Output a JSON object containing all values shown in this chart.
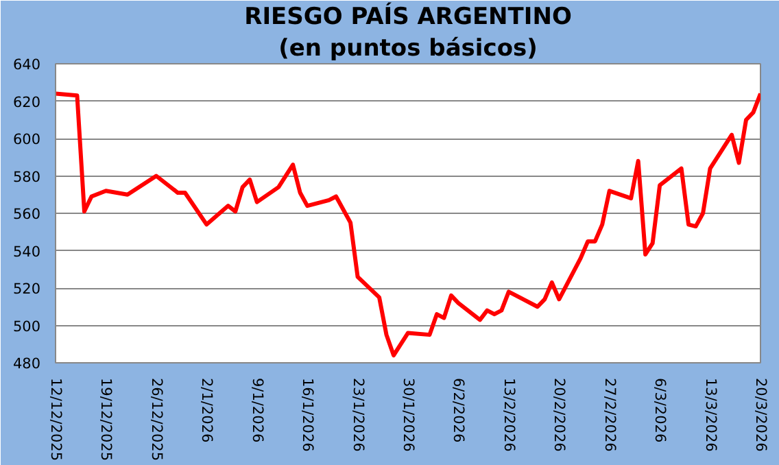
{
  "chart_data": {
    "type": "line",
    "title": "RIESGO PAÍS ARGENTINO",
    "subtitle": "(en puntos básicos)",
    "x": [
      "2025-12-12",
      "2025-12-15",
      "2025-12-16",
      "2025-12-17",
      "2025-12-19",
      "2025-12-22",
      "2025-12-26",
      "2025-12-29",
      "2025-12-30",
      "2026-01-02",
      "2026-01-05",
      "2026-01-06",
      "2026-01-07",
      "2026-01-08",
      "2026-01-09",
      "2026-01-12",
      "2026-01-14",
      "2026-01-15",
      "2026-01-16",
      "2026-01-19",
      "2026-01-20",
      "2026-01-22",
      "2026-01-23",
      "2026-01-26",
      "2026-01-27",
      "2026-01-28",
      "2026-01-30",
      "2026-02-02",
      "2026-02-03",
      "2026-02-04",
      "2026-02-05",
      "2026-02-06",
      "2026-02-09",
      "2026-02-10",
      "2026-02-11",
      "2026-02-12",
      "2026-02-13",
      "2026-02-17",
      "2026-02-18",
      "2026-02-19",
      "2026-02-20",
      "2026-02-23",
      "2026-02-24",
      "2026-02-25",
      "2026-02-26",
      "2026-02-27",
      "2026-03-02",
      "2026-03-03",
      "2026-03-04",
      "2026-03-05",
      "2026-03-06",
      "2026-03-09",
      "2026-03-10",
      "2026-03-11",
      "2026-03-12",
      "2026-03-13",
      "2026-03-16",
      "2026-03-17",
      "2026-03-18",
      "2026-03-19",
      "2026-03-20"
    ],
    "series": [
      {
        "color": "#ff0000",
        "values": [
          624,
          623,
          561,
          569,
          572,
          570,
          580,
          571,
          571,
          554,
          564,
          561,
          574,
          578,
          566,
          574,
          586,
          571,
          564,
          567,
          569,
          555,
          526,
          515,
          495,
          484,
          496,
          495,
          506,
          504,
          516,
          512,
          503,
          508,
          506,
          508,
          518,
          510,
          514,
          523,
          514,
          536,
          545,
          545,
          554,
          572,
          568,
          588,
          538,
          544,
          575,
          584,
          554,
          553,
          560,
          584,
          602,
          587,
          610,
          614,
          624
        ]
      }
    ],
    "xlim": [
      "2025-12-12",
      "2026-03-20"
    ],
    "xticks": [
      {
        "value": "2025-12-12",
        "label": "12/12/2025"
      },
      {
        "value": "2025-12-19",
        "label": "19/12/2025"
      },
      {
        "value": "2025-12-26",
        "label": "26/12/2025"
      },
      {
        "value": "2026-01-02",
        "label": "2/1/2026"
      },
      {
        "value": "2026-01-09",
        "label": "9/1/2026"
      },
      {
        "value": "2026-01-16",
        "label": "16/1/2026"
      },
      {
        "value": "2026-01-23",
        "label": "23/1/2026"
      },
      {
        "value": "2026-01-30",
        "label": "30/1/2026"
      },
      {
        "value": "2026-02-06",
        "label": "6/2/2026"
      },
      {
        "value": "2026-02-13",
        "label": "13/2/2026"
      },
      {
        "value": "2026-02-20",
        "label": "20/2/2026"
      },
      {
        "value": "2026-02-27",
        "label": "27/2/2026"
      },
      {
        "value": "2026-03-06",
        "label": "6/3/2026"
      },
      {
        "value": "2026-03-13",
        "label": "13/3/2026"
      },
      {
        "value": "2026-03-20",
        "label": "20/3/2026"
      }
    ],
    "ylim": [
      480,
      640
    ],
    "yticks": [
      480,
      500,
      520,
      540,
      560,
      580,
      600,
      620,
      640
    ],
    "grid": "y",
    "marker": "none",
    "line_style": "solid"
  }
}
